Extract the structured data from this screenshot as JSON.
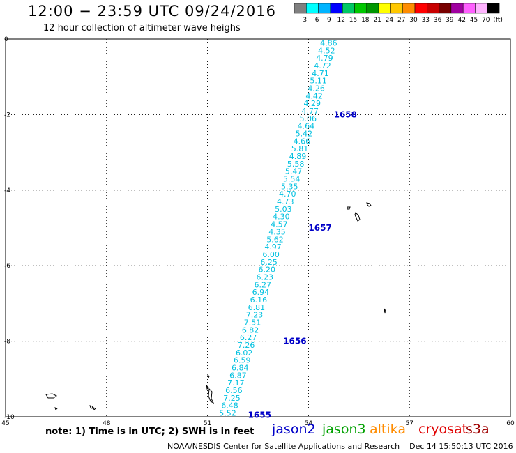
{
  "header": {
    "title": "12:00 − 23:59 UTC 09/24/2016",
    "subtitle": "12 hour collection of altimeter wave heighs"
  },
  "color_scale": {
    "labels": [
      "3",
      "6",
      "9",
      "12",
      "15",
      "18",
      "21",
      "24",
      "27",
      "30",
      "33",
      "36",
      "39",
      "42",
      "45",
      "70",
      "(ft)"
    ],
    "colors": [
      "#808080",
      "#00ffff",
      "#00b4ff",
      "#0000ff",
      "#00c864",
      "#00c800",
      "#009600",
      "#ffff00",
      "#ffc800",
      "#ff8c00",
      "#ff0000",
      "#c80000",
      "#780000",
      "#a000a0",
      "#ff60ff",
      "#ffb4ff",
      "#000000"
    ]
  },
  "footer": {
    "note": "note: 1) Time is in UTC; 2) SWH is in feet",
    "credit": "NOAA/NESDIS Center for Satellite Applications and Research    Dec 14 15:50:13 UTC 2016"
  },
  "satellites": {
    "jason2": "jason2",
    "jason3": "jason3",
    "altika": "altika",
    "cryosat": "cryosat",
    "s3a": "s3a"
  },
  "chart_data": {
    "type": "scatter",
    "xlim": [
      45,
      60
    ],
    "ylim": [
      -10,
      0
    ],
    "x_ticks": [
      "45",
      "48",
      "51",
      "54",
      "57",
      "60"
    ],
    "x_tick_values": [
      45,
      48,
      51,
      54,
      57,
      60
    ],
    "y_ticks": [
      "0",
      "-2",
      "-4",
      "-6",
      "-8",
      "-10"
    ],
    "y_tick_values": [
      0,
      -2,
      -4,
      -6,
      -8,
      -10
    ],
    "grid": true,
    "track": {
      "start": {
        "lon": 51.6,
        "lat": -9.9
      },
      "end": {
        "lon": 54.6,
        "lat": -0.1
      }
    },
    "swh_values": [
      "4.86",
      "4.52",
      "4.79",
      "4.72",
      "4.71",
      "5.11",
      "4.26",
      "4.42",
      "4.29",
      "4.77",
      "5.06",
      "4.64",
      "5.42",
      "4.66",
      "5.81",
      "4.89",
      "5.58",
      "5.47",
      "5.54",
      "5.35",
      "4.70",
      "4.73",
      "5.03",
      "4.30",
      "4.57",
      "4.35",
      "5.62",
      "4.97",
      "6.00",
      "6.25",
      "6.20",
      "6.23",
      "6.27",
      "6.94",
      "6.16",
      "6.81",
      "7.23",
      "7.51",
      "6.82",
      "6.27",
      "7.26",
      "6.02",
      "6.59",
      "6.84",
      "6.87",
      "7.17",
      "6.56",
      "7.25",
      "6.48",
      "5.52"
    ],
    "pass_times": [
      {
        "label": "1658",
        "lon": 54.75,
        "lat": -2.0
      },
      {
        "label": "1657",
        "lon": 54.0,
        "lat": -5.0
      },
      {
        "label": "1656",
        "lon": 53.25,
        "lat": -8.0
      },
      {
        "label": "1655",
        "lon": 52.2,
        "lat": -9.95
      }
    ]
  }
}
